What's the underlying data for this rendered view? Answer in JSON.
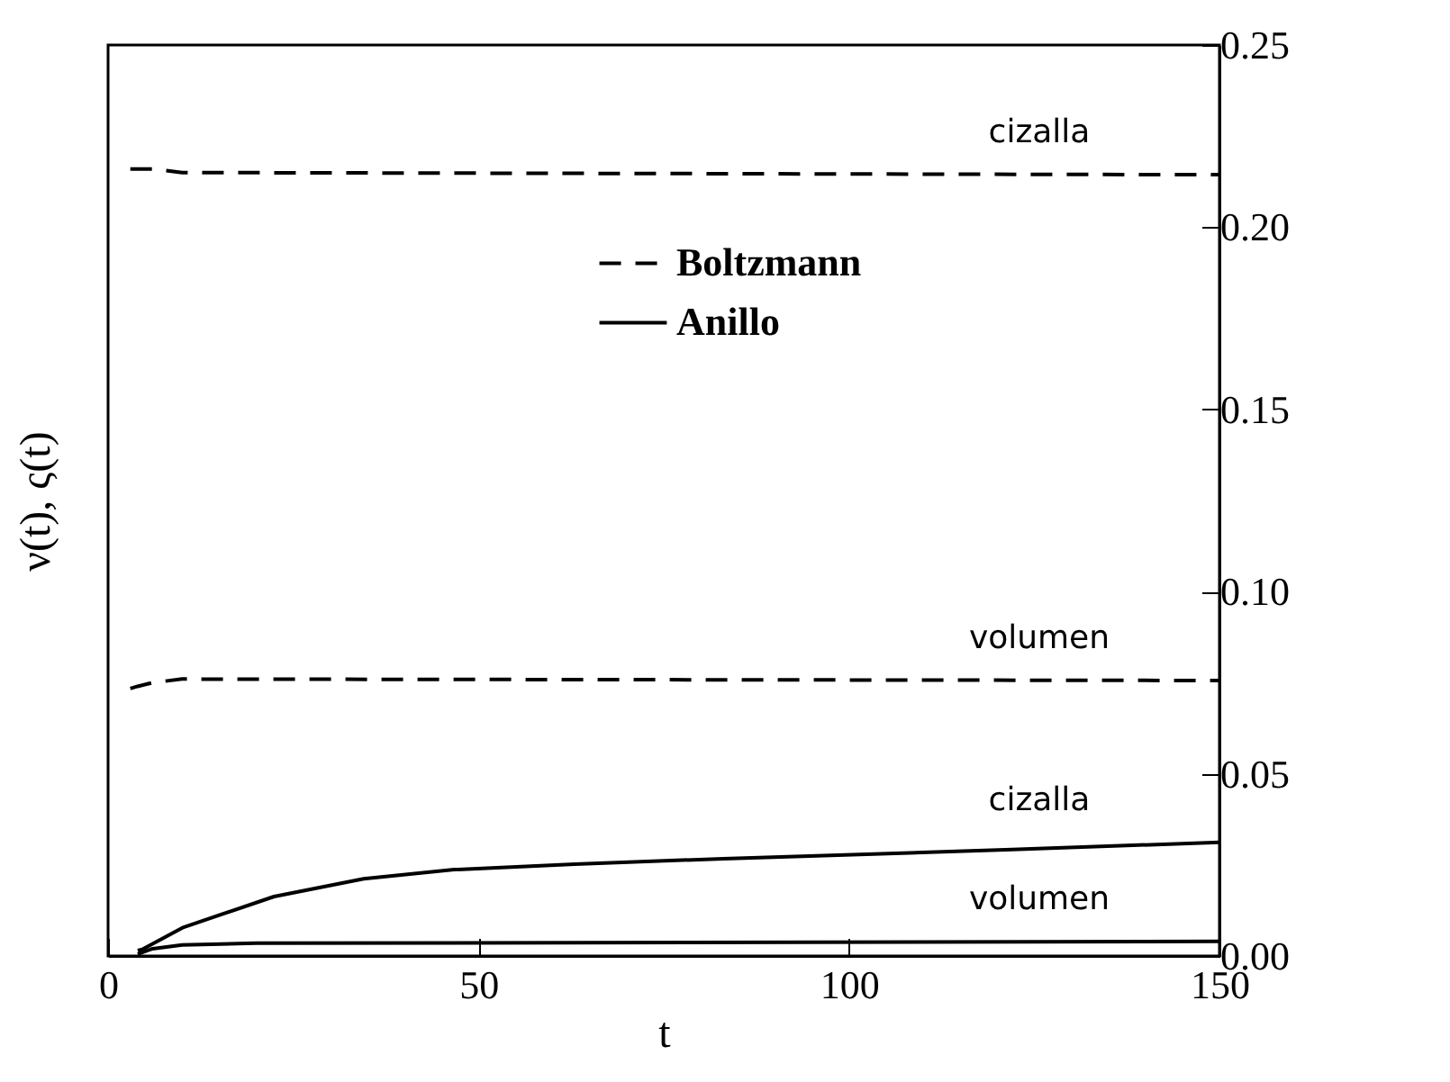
{
  "chart_data": {
    "type": "line",
    "xlabel": "t",
    "ylabel": "ν(t), ς(t)",
    "xlim": [
      0,
      150
    ],
    "xticks": [
      0,
      50,
      100,
      150
    ],
    "ylim": [
      0,
      0.25
    ],
    "yticks": [
      {
        "value": 0,
        "label": "0.00"
      },
      0.05,
      {
        "value": 0.1,
        "label": "0.10"
      },
      0.15,
      {
        "value": 0.2,
        "label": "0.20"
      },
      0.25
    ],
    "legend": "right",
    "grid": false,
    "series": [
      {
        "name": "Boltzmann",
        "color": "#000000",
        "line_style": "dashed",
        "x": [
          3,
          4,
          6,
          10,
          150
        ],
        "values": [
          0.216,
          0.216,
          0.216,
          0.215,
          0.2144
        ]
      },
      {
        "color": "#000000",
        "line_style": "dashed",
        "x": [
          3,
          4,
          6,
          10,
          150
        ],
        "values": [
          0.0734,
          0.074,
          0.075,
          0.076,
          0.0756
        ]
      },
      {
        "name": "Anillo",
        "color": "#000000",
        "line_style": "solid",
        "x": [
          4,
          4.6,
          10.2,
          22.4,
          34.5,
          46.7,
          63,
          83,
          122,
          150
        ],
        "values": [
          0.0015,
          0.0018,
          0.0079,
          0.0163,
          0.0212,
          0.0237,
          0.0252,
          0.0267,
          0.0292,
          0.0312
        ]
      },
      {
        "color": "#000000",
        "line_style": "solid",
        "x": [
          4,
          6,
          10,
          20,
          150
        ],
        "values": [
          0.0005,
          0.002,
          0.003,
          0.0035,
          0.004
        ]
      }
    ],
    "annotations": [
      "cizalla",
      "volumen",
      "cizalla",
      "volumen"
    ]
  }
}
